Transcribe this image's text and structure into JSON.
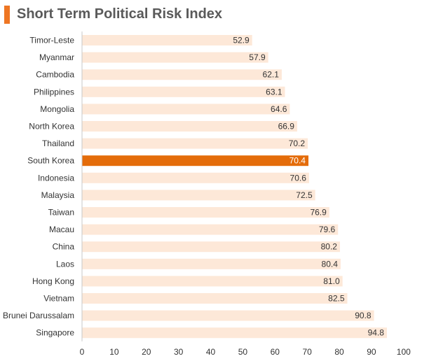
{
  "title": "Short Term Political Risk Index",
  "colors": {
    "accent": "#ee7623",
    "bar_default": "#fde8d8",
    "bar_highlight": "#e46c0a",
    "text": "#333333",
    "highlight_label": "#ffffff"
  },
  "chart_data": {
    "type": "bar",
    "orientation": "horizontal",
    "categories": [
      "Timor-Leste",
      "Myanmar",
      "Cambodia",
      "Philippines",
      "Mongolia",
      "North Korea",
      "Thailand",
      "South Korea",
      "Indonesia",
      "Malaysia",
      "Taiwan",
      "Macau",
      "China",
      "Laos",
      "Hong Kong",
      "Vietnam",
      "Brunei Darussalam",
      "Singapore"
    ],
    "values": [
      52.9,
      57.9,
      62.1,
      63.1,
      64.6,
      66.9,
      70.2,
      70.4,
      70.6,
      72.5,
      76.9,
      79.6,
      80.2,
      80.4,
      81.0,
      82.5,
      90.8,
      94.8
    ],
    "value_labels": [
      "52.9",
      "57.9",
      "62.1",
      "63.1",
      "64.6",
      "66.9",
      "70.2",
      "70.4",
      "70.6",
      "72.5",
      "76.9",
      "79.6",
      "80.2",
      "80.4",
      "81.0",
      "82.5",
      "90.8",
      "94.8"
    ],
    "highlight": "South Korea",
    "xlim": [
      0,
      100
    ],
    "xticks": [
      0,
      10,
      20,
      30,
      40,
      50,
      60,
      70,
      80,
      90,
      100
    ],
    "xlabel": "",
    "ylabel": "",
    "grid": false,
    "legend": "none"
  }
}
